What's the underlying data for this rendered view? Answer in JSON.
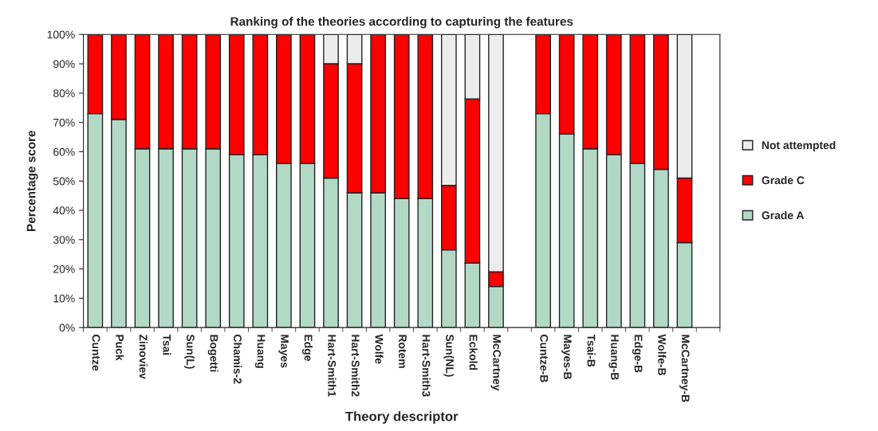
{
  "chart_data": {
    "type": "bar",
    "stacked": true,
    "title": "Ranking of the theories according to capturing the features",
    "xlabel": "Theory descriptor",
    "ylabel": "Percentage score",
    "categories": [
      "Cuntze",
      "Puck",
      "Zinoviev",
      "Tsai",
      "Sun(L)",
      "Bogetti",
      "Chamis-2",
      "Huang",
      "Mayes",
      "Edge",
      "Hart-Smith1",
      "Hart-Smith2",
      "Wolfe",
      "Rotem",
      "Hart-Smith3",
      "Sun(NL)",
      "Eckold",
      "McCartney",
      null,
      "Cuntze-B",
      "Mayes-B",
      "Tsai-B",
      "Huang-B",
      "Edge-B",
      "Wolfe-B",
      "McCartney-B",
      null
    ],
    "series": [
      {
        "name": "Grade A",
        "color": "#b2d8c6",
        "values": [
          73,
          71,
          61,
          61,
          61,
          61,
          59,
          59,
          56,
          56,
          51,
          46,
          46,
          44,
          44,
          26.5,
          22,
          14,
          null,
          73,
          66,
          61,
          59,
          56,
          54,
          29,
          null
        ]
      },
      {
        "name": "Grade C",
        "color": "#ff0000",
        "values": [
          27,
          29,
          39,
          39,
          39,
          39,
          41,
          41,
          44,
          44,
          39,
          44,
          54,
          56,
          56,
          22,
          56,
          5,
          null,
          27,
          34,
          39,
          41,
          44,
          46,
          22,
          null
        ]
      },
      {
        "name": "Not attempted",
        "color": "#ececec",
        "values": [
          0,
          0,
          0,
          0,
          0,
          0,
          0,
          0,
          0,
          0,
          10,
          10,
          0,
          0,
          0,
          51.5,
          22,
          81,
          null,
          0,
          0,
          0,
          0,
          0,
          0,
          49,
          null
        ]
      }
    ],
    "ylim": [
      0,
      100
    ],
    "yticks": [
      {
        "value": 0,
        "label": "0%"
      },
      {
        "value": 10,
        "label": "10%"
      },
      {
        "value": 20,
        "label": "20%"
      },
      {
        "value": 30,
        "label": "30%"
      },
      {
        "value": 40,
        "label": "40%"
      },
      {
        "value": 50,
        "label": "50%"
      },
      {
        "value": 60,
        "label": "60%"
      },
      {
        "value": 70,
        "label": "70%"
      },
      {
        "value": 80,
        "label": "80%"
      },
      {
        "value": 90,
        "label": "90%"
      },
      {
        "value": 100,
        "label": "100%"
      }
    ],
    "grid": false,
    "legend": "right"
  }
}
